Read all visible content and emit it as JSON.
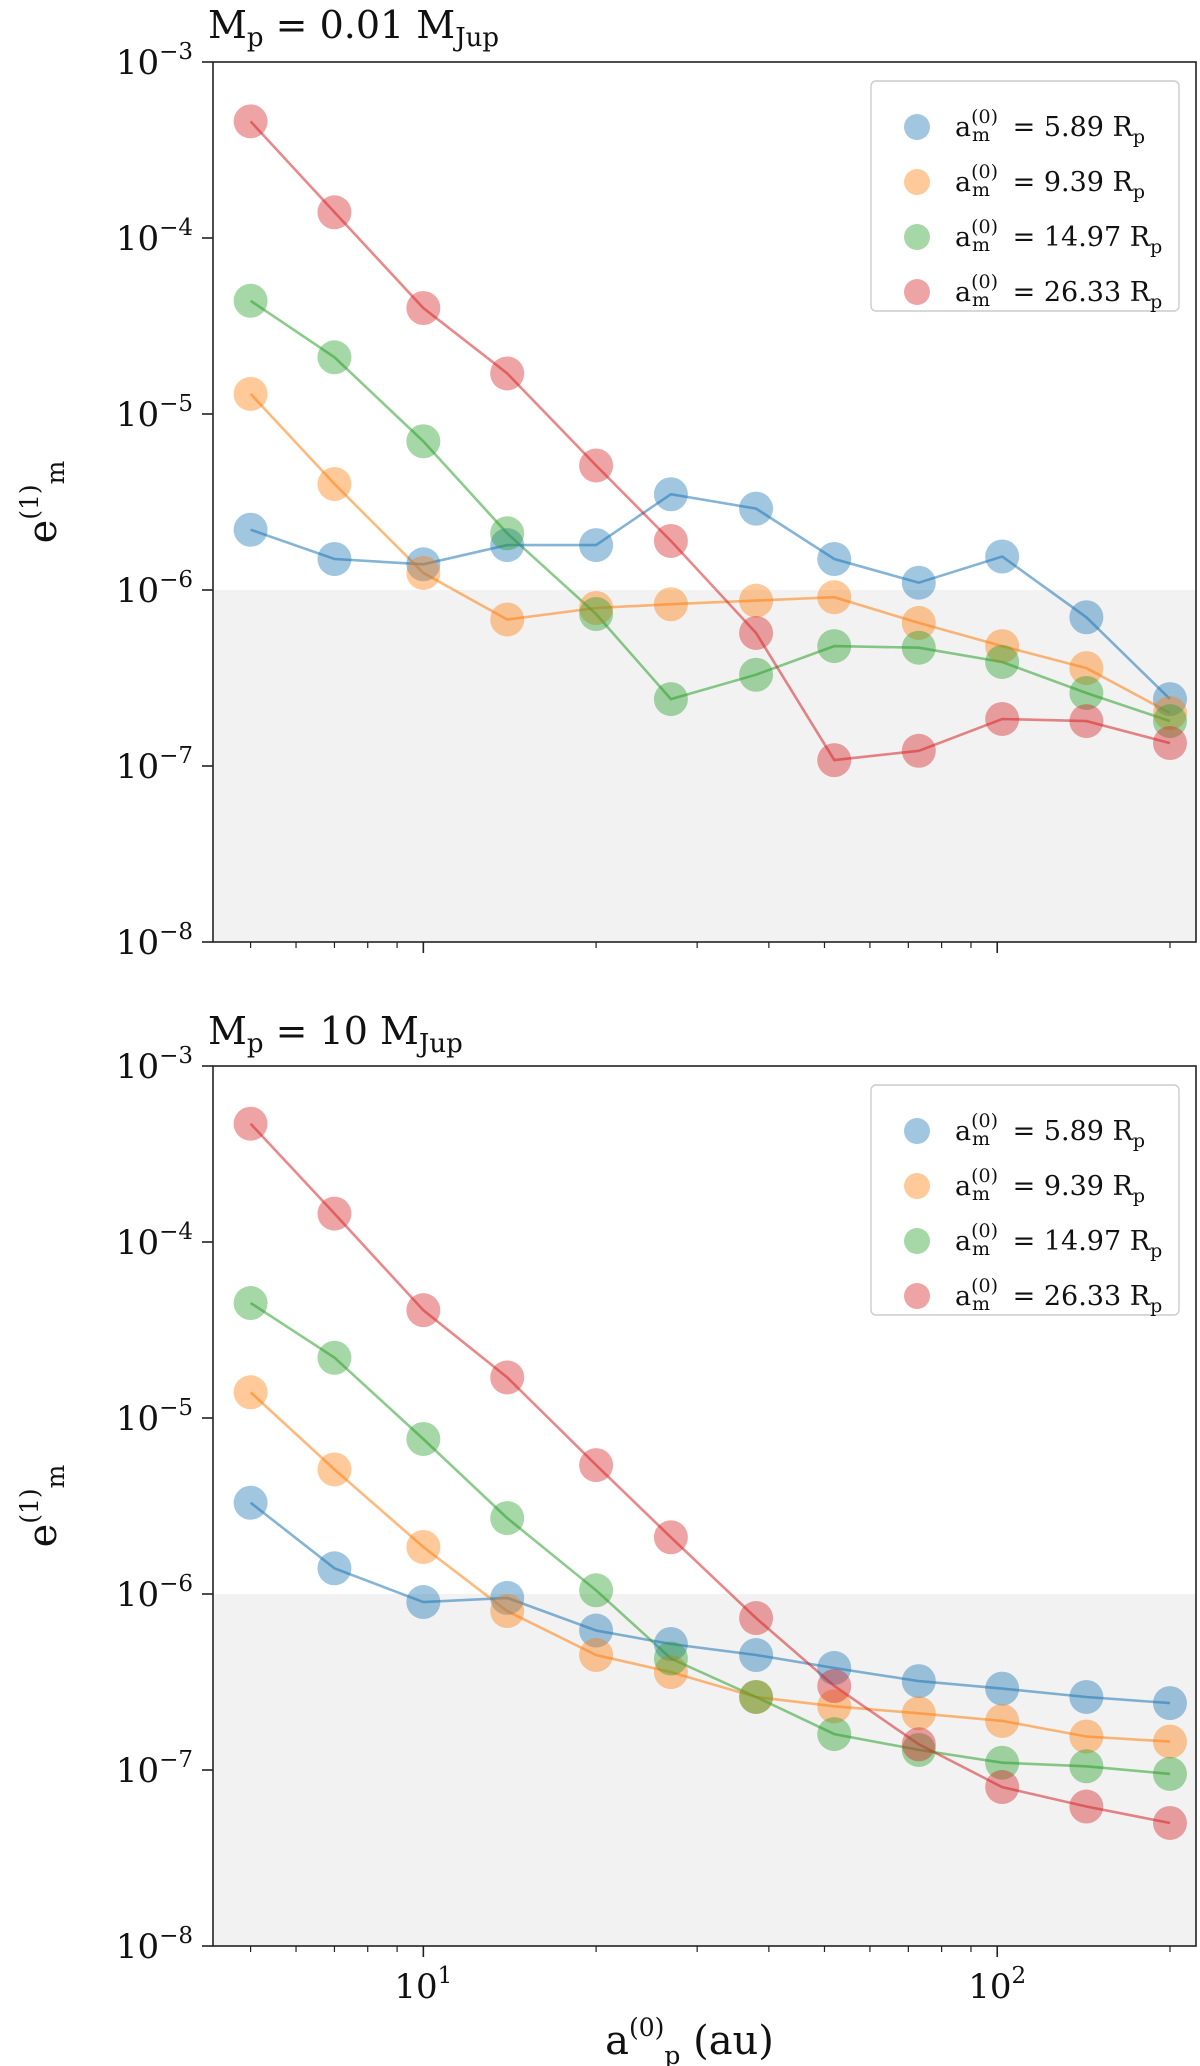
{
  "chart_data": [
    {
      "type": "scatter",
      "title": {
        "base": "M",
        "sub": "p",
        "text": " = 0.01 M",
        "unit_sub": "Jup"
      },
      "xscale": "log",
      "yscale": "log",
      "xlim": [
        4.3,
        222
      ],
      "ylim": [
        1e-08,
        0.001
      ],
      "ylabel": {
        "base": "e",
        "sub": "m",
        "sup": "(1)"
      },
      "xlabel": "",
      "x_ticks": [
        {
          "base": "10",
          "exp": "1",
          "value": 10
        },
        {
          "base": "10",
          "exp": "2",
          "value": 100
        }
      ],
      "y_ticks": [
        {
          "base": "10",
          "exp": "−8",
          "value": 1e-08
        },
        {
          "base": "10",
          "exp": "−7",
          "value": 1e-07
        },
        {
          "base": "10",
          "exp": "−6",
          "value": 1e-06
        },
        {
          "base": "10",
          "exp": "−5",
          "value": 1e-05
        },
        {
          "base": "10",
          "exp": "−4",
          "value": 0.0001
        },
        {
          "base": "10",
          "exp": "−3",
          "value": 0.001
        }
      ],
      "shaded_region": {
        "y_min": 1e-08,
        "y_max": 1e-06,
        "color": "#f2f2f2"
      },
      "legend_position": "top-right",
      "x": [
        5,
        7,
        10,
        14,
        20,
        27,
        38,
        52,
        73,
        102,
        143,
        200
      ],
      "series": [
        {
          "label": {
            "base": "a",
            "sub": "m",
            "sup": "(0)",
            "value": " = 5.89 R",
            "unit_sub": "p"
          },
          "color": "#1f77b4",
          "values": [
            2.2e-06,
            1.5e-06,
            1.4e-06,
            1.8e-06,
            1.8e-06,
            3.5e-06,
            2.9e-06,
            1.5e-06,
            1.1e-06,
            1.55e-06,
            7e-07,
            2.4e-07
          ]
        },
        {
          "label": {
            "base": "a",
            "sub": "m",
            "sup": "(0)",
            "value": " = 9.39 R",
            "unit_sub": "p"
          },
          "color": "#ff7f0e",
          "values": [
            1.3e-05,
            4e-06,
            1.25e-06,
            6.8e-07,
            7.9e-07,
            8.3e-07,
            8.7e-07,
            9.1e-07,
            6.5e-07,
            4.8e-07,
            3.6e-07,
            2e-07
          ]
        },
        {
          "label": {
            "base": "a",
            "sub": "m",
            "sup": "(0)",
            "value": " = 14.97 R",
            "unit_sub": "p"
          },
          "color": "#2ca02c",
          "values": [
            4.4e-05,
            2.1e-05,
            7e-06,
            2.1e-06,
            7.3e-07,
            2.4e-07,
            3.3e-07,
            4.8e-07,
            4.7e-07,
            3.9e-07,
            2.6e-07,
            1.8e-07
          ]
        },
        {
          "label": {
            "base": "a",
            "sub": "m",
            "sup": "(0)",
            "value": " = 26.33 R",
            "unit_sub": "p"
          },
          "color": "#d62728",
          "values": [
            0.00046,
            0.00014,
            4e-05,
            1.7e-05,
            5.1e-06,
            1.9e-06,
            5.7e-07,
            1.08e-07,
            1.22e-07,
            1.85e-07,
            1.8e-07,
            1.35e-07
          ]
        }
      ]
    },
    {
      "type": "scatter",
      "title": {
        "base": "M",
        "sub": "p",
        "text": " = 10 M",
        "unit_sub": "Jup"
      },
      "xscale": "log",
      "yscale": "log",
      "xlim": [
        4.3,
        222
      ],
      "ylim": [
        1e-08,
        0.001
      ],
      "ylabel": {
        "base": "e",
        "sub": "m",
        "sup": "(1)"
      },
      "xlabel": {
        "base": "a",
        "sub": "p",
        "sup": "(0)",
        "unit": " (au)"
      },
      "x_ticks": [
        {
          "base": "10",
          "exp": "1",
          "value": 10
        },
        {
          "base": "10",
          "exp": "2",
          "value": 100
        }
      ],
      "y_ticks": [
        {
          "base": "10",
          "exp": "−8",
          "value": 1e-08
        },
        {
          "base": "10",
          "exp": "−7",
          "value": 1e-07
        },
        {
          "base": "10",
          "exp": "−6",
          "value": 1e-06
        },
        {
          "base": "10",
          "exp": "−5",
          "value": 1e-05
        },
        {
          "base": "10",
          "exp": "−4",
          "value": 0.0001
        },
        {
          "base": "10",
          "exp": "−3",
          "value": 0.001
        }
      ],
      "shaded_region": {
        "y_min": 1e-08,
        "y_max": 1e-06,
        "color": "#f2f2f2"
      },
      "legend_position": "top-right",
      "x": [
        5,
        7,
        10,
        14,
        20,
        27,
        38,
        52,
        73,
        102,
        143,
        200
      ],
      "series": [
        {
          "label": {
            "base": "a",
            "sub": "m",
            "sup": "(0)",
            "value": " = 5.89 R",
            "unit_sub": "p"
          },
          "color": "#1f77b4",
          "values": [
            3.3e-06,
            1.4e-06,
            9e-07,
            9.5e-07,
            6.2e-07,
            5.2e-07,
            4.5e-07,
            3.8e-07,
            3.2e-07,
            2.9e-07,
            2.6e-07,
            2.4e-07
          ]
        },
        {
          "label": {
            "base": "a",
            "sub": "m",
            "sup": "(0)",
            "value": " = 9.39 R",
            "unit_sub": "p"
          },
          "color": "#ff7f0e",
          "values": [
            1.4e-05,
            5.1e-06,
            1.85e-06,
            8e-07,
            4.5e-07,
            3.6e-07,
            2.6e-07,
            2.3e-07,
            2.1e-07,
            1.9e-07,
            1.55e-07,
            1.45e-07
          ]
        },
        {
          "label": {
            "base": "a",
            "sub": "m",
            "sup": "(0)",
            "value": " = 14.97 R",
            "unit_sub": "p"
          },
          "color": "#2ca02c",
          "values": [
            4.5e-05,
            2.2e-05,
            7.6e-06,
            2.7e-06,
            1.05e-06,
            4.3e-07,
            2.6e-07,
            1.6e-07,
            1.3e-07,
            1.1e-07,
            1.05e-07,
            9.5e-08
          ]
        },
        {
          "label": {
            "base": "a",
            "sub": "m",
            "sup": "(0)",
            "value": " = 26.33 R",
            "unit_sub": "p"
          },
          "color": "#d62728",
          "values": [
            0.00047,
            0.000145,
            4.1e-05,
            1.7e-05,
            5.4e-06,
            2.1e-06,
            7.3e-07,
            3e-07,
            1.4e-07,
            8e-08,
            6.2e-08,
            5e-08
          ]
        }
      ]
    }
  ]
}
